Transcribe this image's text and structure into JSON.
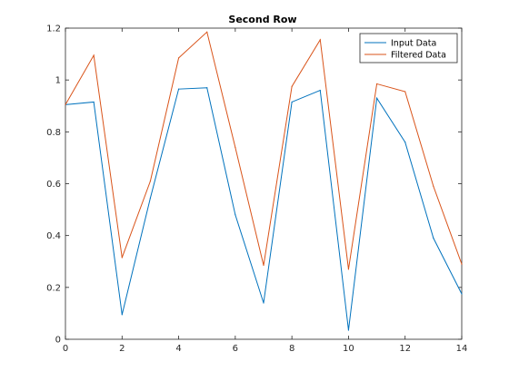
{
  "chart_data": {
    "type": "line",
    "title": "Second Row",
    "xlabel": "",
    "ylabel": "",
    "xlim": [
      0,
      14
    ],
    "ylim": [
      0,
      1.2
    ],
    "xticks": [
      0,
      2,
      4,
      6,
      8,
      10,
      12,
      14
    ],
    "xtick_labels": [
      "0",
      "2",
      "4",
      "6",
      "8",
      "10",
      "12",
      "14"
    ],
    "yticks": [
      0,
      0.2,
      0.4,
      0.6,
      0.8,
      1,
      1.2
    ],
    "ytick_labels": [
      "0",
      "0.2",
      "0.4",
      "0.6",
      "0.8",
      "1",
      "1.2"
    ],
    "grid": false,
    "legend_position": "top-right",
    "x": [
      0,
      1,
      2,
      3,
      4,
      5,
      6,
      7,
      8,
      9,
      10,
      11,
      12,
      13,
      14
    ],
    "series": [
      {
        "name": "Input Data",
        "color": "#0072bd",
        "values": [
          0.905,
          0.915,
          0.095,
          0.545,
          0.965,
          0.97,
          0.48,
          0.14,
          0.915,
          0.96,
          0.035,
          0.93,
          0.76,
          0.39,
          0.175
        ]
      },
      {
        "name": "Filtered Data",
        "color": "#d95319",
        "values": [
          0.905,
          1.095,
          0.315,
          0.61,
          1.085,
          1.185,
          0.74,
          0.285,
          0.975,
          1.155,
          0.27,
          0.985,
          0.955,
          0.59,
          0.29
        ]
      }
    ]
  }
}
